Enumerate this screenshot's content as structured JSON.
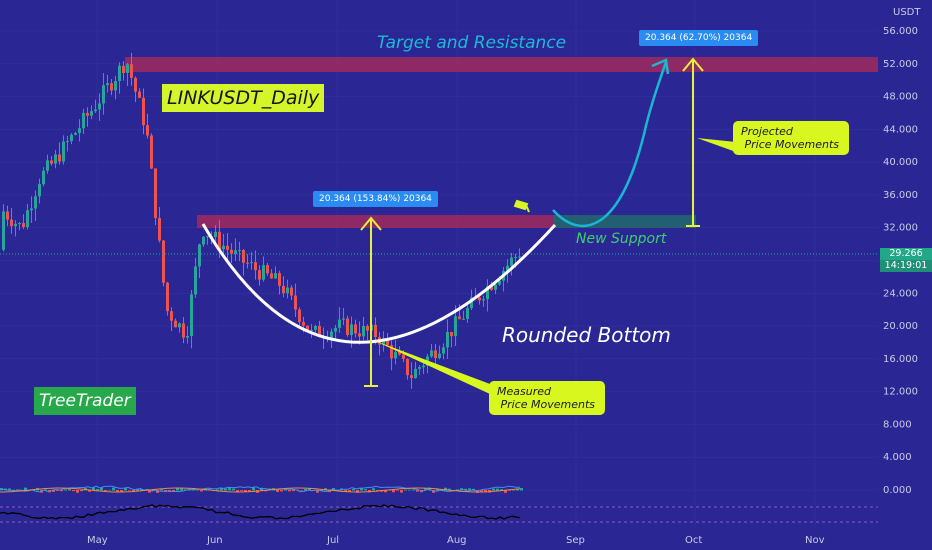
{
  "chart_data": {
    "type": "candlestick",
    "symbol_title": "LINKUSDT_Daily",
    "currency": "USDT",
    "y_ticks": [
      "56.000",
      "52.000",
      "48.000",
      "44.000",
      "40.000",
      "36.000",
      "32.000",
      "28.000",
      "24.000",
      "20.000",
      "16.000",
      "12.000",
      "8.000",
      "4.000",
      "0.000"
    ],
    "x_ticks": [
      "May",
      "Jun",
      "Jul",
      "Aug",
      "Sep",
      "Oct",
      "Nov"
    ],
    "current_price": "29.266",
    "countdown": "14:19:01",
    "approx_close_path": [
      {
        "date": "Apr",
        "close": 34
      },
      {
        "date": "mid-Apr",
        "close": 32
      },
      {
        "date": "late-Apr",
        "close": 38
      },
      {
        "date": "May",
        "close": 40
      },
      {
        "date": "early-May",
        "close": 48
      },
      {
        "date": "May peak",
        "close": 52.5
      },
      {
        "date": "mid-May",
        "close": 44
      },
      {
        "date": "late-May",
        "close": 22
      },
      {
        "date": "end-May",
        "close": 19
      },
      {
        "date": "Jun",
        "close": 32
      },
      {
        "date": "early-Jun",
        "close": 28
      },
      {
        "date": "mid-Jun",
        "close": 25
      },
      {
        "date": "late-Jun",
        "close": 19
      },
      {
        "date": "Jul",
        "close": 20
      },
      {
        "date": "mid-Jul",
        "close": 19
      },
      {
        "date": "late-Jul",
        "close": 14
      },
      {
        "date": "Aug",
        "close": 18
      },
      {
        "date": "mid-Aug",
        "close": 24
      },
      {
        "date": "late-Aug",
        "close": 29.3
      }
    ]
  },
  "annotations": {
    "target_label": "Target and Resistance",
    "support_label": "New Support",
    "pattern_label": "Rounded Bottom",
    "measured_note": "Measured\n Price Movements",
    "projected_note": "Projected\n Price Movements",
    "measure_tag_1": "20.364 (153.84%) 20364",
    "measure_tag_2": "20.364 (62.70%) 20364",
    "brand": "TreeTrader"
  },
  "colors": {
    "background": "#2a2794",
    "up": "#26a69a",
    "down": "#ef5350",
    "resistance_zone": "#a02a5e",
    "support_zone": "#22666e",
    "arrow_yellow": "#e4f23a",
    "curve_white": "#ffffff",
    "projection_cyan": "#19b7d2"
  }
}
